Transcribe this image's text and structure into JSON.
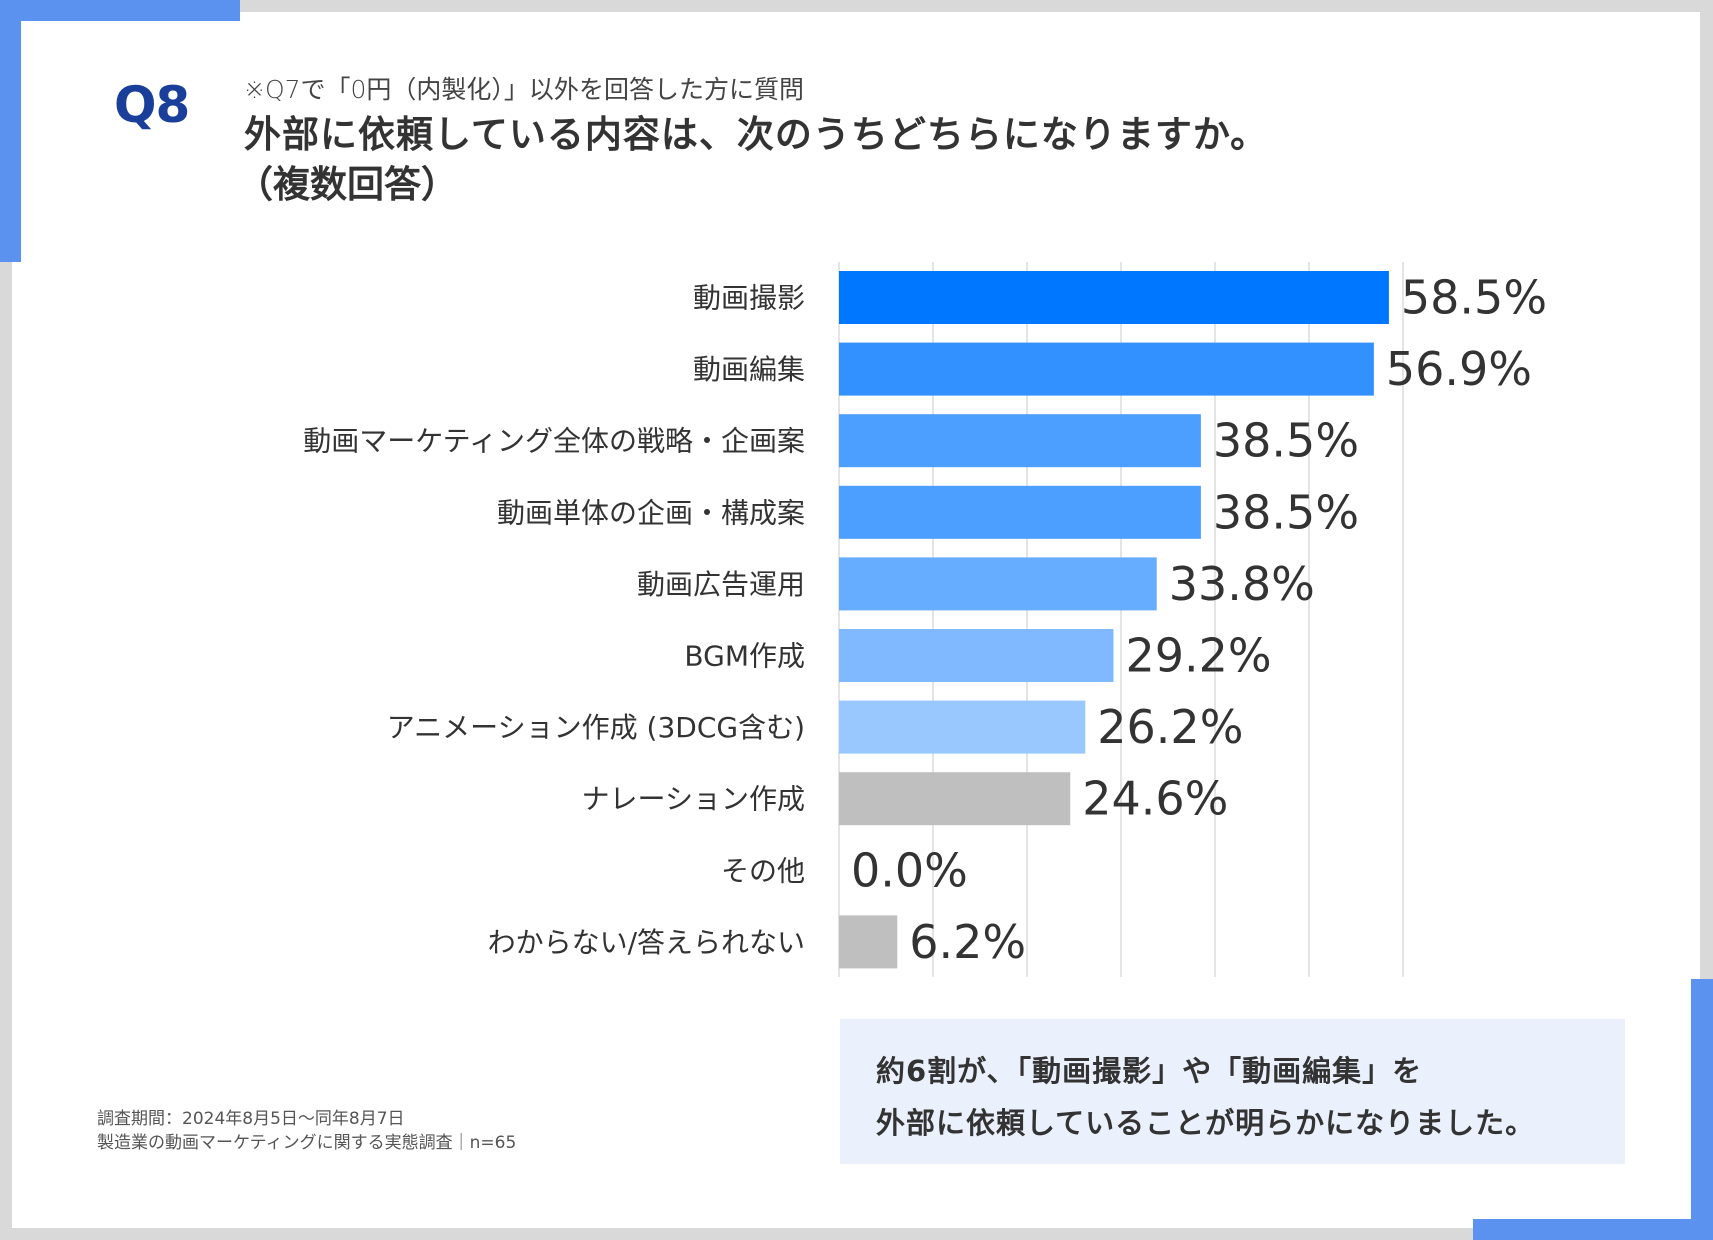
{
  "header": {
    "question_number": "Q8",
    "note": "※Q7で「0円（内製化）」以外を回答した方に質問",
    "title_line1": "外部に依頼している内容は、次のうちどちらになりますか。",
    "title_line2": "（複数回答）"
  },
  "callout": {
    "line1": "約6割が、「動画撮影」や「動画編集」を",
    "line2": "外部に依頼していることが明らかになりました。"
  },
  "footnote": {
    "period": "調査期間：2024年8月5日～同年8月7日",
    "survey": "製造業の動画マーケティングに関する実態調査｜n=65"
  },
  "colors": {
    "frame": "#d9d9d9",
    "bracket": "#5b92f0",
    "accent": "#1a3f9a",
    "callout_bg": "#eaf1fd"
  },
  "chart_data": {
    "type": "bar",
    "orientation": "horizontal",
    "title": "外部に依頼している内容は、次のうちどちらになりますか。（複数回答）",
    "xlabel": "",
    "ylabel": "",
    "xlim": [
      0,
      60
    ],
    "grid": true,
    "grid_step": 10,
    "unit": "%",
    "categories": [
      "動画撮影",
      "動画編集",
      "動画マーケティング全体の戦略・企画案",
      "動画単体の企画・構成案",
      "動画広告運用",
      "BGM作成",
      "アニメーション作成 (3DCG含む)",
      "ナレーション作成",
      "その他",
      "わからない/答えられない"
    ],
    "values": [
      58.5,
      56.9,
      38.5,
      38.5,
      33.8,
      29.2,
      26.2,
      24.6,
      0.0,
      6.2
    ],
    "value_labels": [
      "58.5%",
      "56.9%",
      "38.5%",
      "38.5%",
      "33.8%",
      "29.2%",
      "26.2%",
      "24.6%",
      "0.0%",
      "6.2%"
    ],
    "bar_colors": [
      "#0077ff",
      "#3391ff",
      "#4c9eff",
      "#4c9eff",
      "#66acff",
      "#80b9ff",
      "#99c7ff",
      "#bfbfbf",
      "#bfbfbf",
      "#bfbfbf"
    ]
  }
}
